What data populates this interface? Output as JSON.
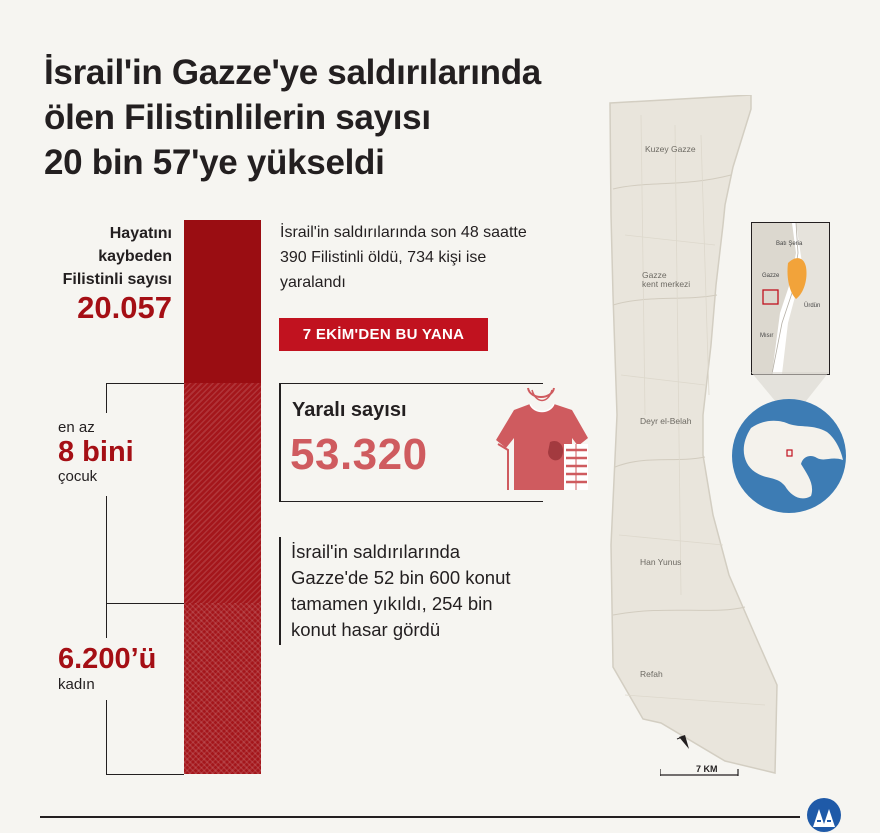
{
  "title": {
    "line1": "İsrail'in Gazze'ye saldırılarında",
    "line2": "ölen Filistinlilerin sayısı",
    "line3": "20 bin 57'ye yükseldi"
  },
  "killed": {
    "label_line1": "Hayatını",
    "label_line2": "kaybeden",
    "label_line3": "Filistinli sayısı",
    "value": "20.057"
  },
  "children": {
    "prefix": "en az",
    "value": "8 bini",
    "suffix": "çocuk"
  },
  "women": {
    "value": "6.200’ü",
    "suffix": "kadın"
  },
  "bar_segments": {
    "total": 20057,
    "children": 8000,
    "women": 6200
  },
  "note_recent": {
    "line1": "İsrail'in saldırılarında son 48 saatte",
    "line2": "390 Filistinli öldü, 734 kişi ise",
    "line3": "yaralandı"
  },
  "badge": "7 EKİM'DEN  BU YANA",
  "injured": {
    "label": "Yaralı sayısı",
    "value": "53.320"
  },
  "note_housing": {
    "line1": "İsrail'in saldırılarında",
    "line2": "Gazze'de 52 bin 600 konut",
    "line3": "tamamen yıkıldı, 254 bin",
    "line4": "konut hasar gördü"
  },
  "map": {
    "kuzey": "Kuzey Gazze",
    "merkez1": "Gazze",
    "merkez2": "kent merkezi",
    "deyr": "Deyr el-Belah",
    "hanyunus": "Han Yunus",
    "refah": "Refah",
    "scale": "7 KM",
    "inset_bati": "Batı Şeria",
    "inset_gazze": "Gazze",
    "inset_urdun": "Ürdün",
    "inset_misir": "Mısır"
  },
  "colors": {
    "dark_red": "#9a0d12",
    "accent_red": "#a50f15",
    "badge_red": "#c1121f",
    "injured_pink": "#cf5b5f",
    "map_land": "#e9e5dc"
  }
}
